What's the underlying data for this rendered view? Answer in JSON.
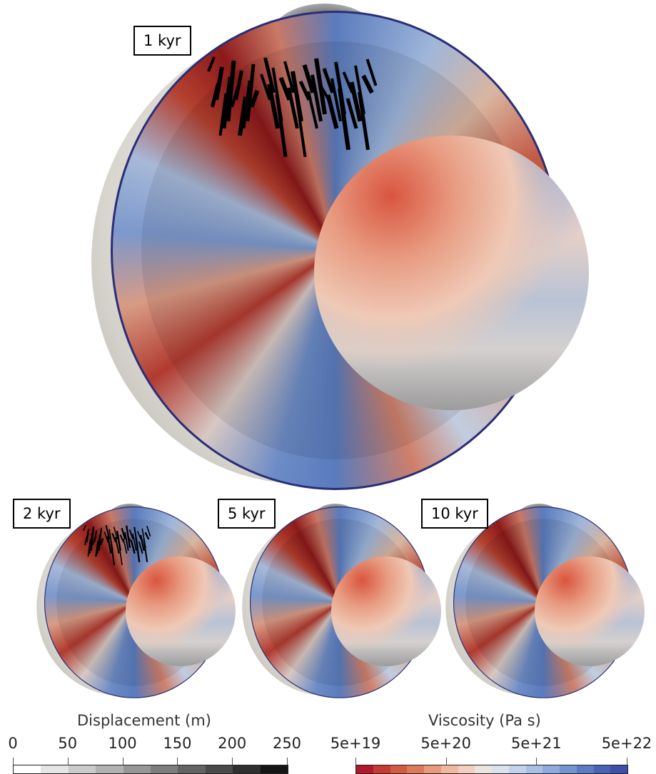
{
  "panels": [
    {
      "label": "1 kyr"
    },
    {
      "label": "2 kyr"
    },
    {
      "label": "5 kyr"
    },
    {
      "label": "10 kyr"
    }
  ],
  "colorbars": {
    "displacement": {
      "title": "Displacement (m)",
      "ticks": [
        0,
        50,
        100,
        150,
        200,
        250
      ]
    },
    "viscosity": {
      "title": "Viscosity (Pa s)",
      "ticks": [
        "5e+19",
        "5e+20",
        "5e+21",
        "5e+22"
      ]
    }
  }
}
